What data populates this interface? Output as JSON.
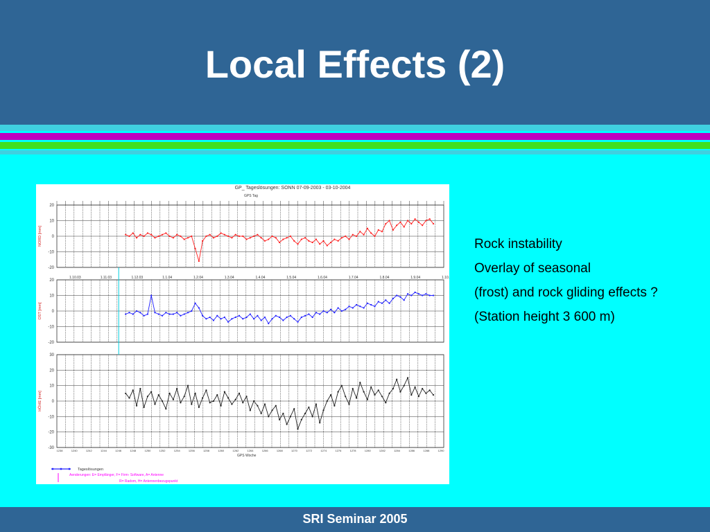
{
  "slide": {
    "title": "Local Effects (2)",
    "footer": "SRI Seminar 2005",
    "bullets": [
      "Rock instability",
      "Overlay of seasonal",
      "(frost) and rock gliding effects ?",
      "(Station height 3 600 m)"
    ]
  },
  "colors": {
    "header_bg": "#2F6595",
    "content_bg": "#00FFFF",
    "stripe_cyan": "#3FD0E0",
    "stripe_magenta": "#C000C0",
    "stripe_green": "#40E020",
    "series_north": "#FF2020",
    "series_east": "#2020FF",
    "series_height": "#202020"
  },
  "chart_data": {
    "type": "line",
    "title": "GP_ Tageslösungen: SONN 07-09-2003 - 03-10-2004",
    "top_axis_label": "GPS Tag",
    "bottom_axis_label": "GPS Woche",
    "date_ticks": [
      "1.10.03",
      "1.11.03",
      "1.12.03",
      "1.1.04",
      "1.2.04",
      "1.3.04",
      "1.4.04",
      "1.5.04",
      "1.6.04",
      "1.7.04",
      "1.8.04",
      "1.9.04",
      "1.10.04"
    ],
    "gps_weeks": [
      "1238",
      "1240",
      "1242",
      "1244",
      "1246",
      "1248",
      "1250",
      "1252",
      "1254",
      "1256",
      "1258",
      "1260",
      "1262",
      "1264",
      "1266",
      "1268",
      "1270",
      "1272",
      "1274",
      "1276",
      "1278",
      "1280",
      "1282",
      "1284",
      "1286",
      "1288",
      "1290"
    ],
    "panels": [
      {
        "ylabel": "NORD [mm]",
        "ylim": [
          -20,
          20
        ],
        "yticks": [
          20,
          10,
          0,
          -10,
          -20
        ],
        "series": [
          {
            "color": "#FF2020",
            "x_range": [
              "1.1.04",
              "3.10.04"
            ],
            "values": [
              1,
              0,
              2,
              -1,
              1,
              0,
              2,
              1,
              -1,
              0,
              1,
              2,
              0,
              -1,
              1,
              0,
              -2,
              -1,
              0,
              -8,
              -16,
              -3,
              0,
              1,
              -1,
              0,
              2,
              1,
              0,
              -1,
              1,
              0,
              0,
              -2,
              -1,
              0,
              1,
              -1,
              -3,
              -2,
              0,
              -1,
              -4,
              -2,
              -1,
              0,
              -3,
              -5,
              -2,
              -1,
              -3,
              -4,
              -2,
              -5,
              -3,
              -6,
              -4,
              -2,
              -3,
              -1,
              0,
              -2,
              1,
              0,
              3,
              1,
              5,
              2,
              0,
              4,
              3,
              8,
              10,
              4,
              7,
              9,
              6,
              10,
              8,
              11,
              9,
              7,
              10,
              11,
              8
            ]
          }
        ]
      },
      {
        "ylabel": "OST [mm]",
        "ylim": [
          -20,
          20
        ],
        "yticks": [
          20,
          10,
          0,
          -10,
          -20
        ],
        "series": [
          {
            "color": "#2020FF",
            "x_range": [
              "1.1.04",
              "3.10.04"
            ],
            "values": [
              -2,
              -1,
              -2,
              0,
              -1,
              -3,
              -2,
              10,
              -1,
              -2,
              -3,
              -1,
              -2,
              -2,
              -1,
              -3,
              -2,
              -1,
              0,
              5,
              2,
              -3,
              -5,
              -4,
              -6,
              -3,
              -5,
              -4,
              -7,
              -5,
              -4,
              -3,
              -5,
              -4,
              -2,
              -5,
              -3,
              -6,
              -4,
              -8,
              -5,
              -3,
              -4,
              -6,
              -4,
              -3,
              -5,
              -7,
              -4,
              -3,
              -2,
              -4,
              -1,
              -2,
              0,
              -1,
              1,
              -1,
              2,
              0,
              1,
              3,
              2,
              4,
              3,
              2,
              5,
              4,
              3,
              6,
              5,
              7,
              5,
              8,
              10,
              9,
              7,
              11,
              10,
              12,
              11,
              10,
              11,
              10,
              10
            ]
          }
        ]
      },
      {
        "ylabel": "HÖHE [mm]",
        "ylim": [
          -30,
          30
        ],
        "yticks": [
          30,
          20,
          10,
          0,
          -10,
          -20,
          -30
        ],
        "series": [
          {
            "color": "#202020",
            "x_range": [
              "1.1.04",
              "3.10.04"
            ],
            "values": [
              5,
              2,
              7,
              -3,
              8,
              -4,
              3,
              6,
              -2,
              4,
              0,
              -5,
              5,
              1,
              8,
              -1,
              3,
              10,
              -2,
              5,
              -4,
              2,
              7,
              -1,
              0,
              4,
              -3,
              6,
              2,
              -2,
              1,
              5,
              -1,
              3,
              -6,
              0,
              -3,
              -8,
              -2,
              -10,
              -6,
              -3,
              -12,
              -8,
              -15,
              -10,
              -5,
              -18,
              -12,
              -8,
              -4,
              -10,
              -2,
              -14,
              -6,
              0,
              4,
              -3,
              6,
              10,
              3,
              -2,
              8,
              2,
              12,
              6,
              1,
              9,
              4,
              7,
              3,
              -1,
              5,
              8,
              14,
              6,
              10,
              15,
              4,
              9,
              3,
              8,
              5,
              7,
              4
            ]
          }
        ]
      }
    ],
    "legend": {
      "series_label": "Tageslösungen",
      "changes_line1": "Aenderungen:  E= Empfänger, F= Firm- Software, A= Antenne",
      "changes_line2": "R= Radom, H= Antennenbezugspunkt"
    }
  }
}
